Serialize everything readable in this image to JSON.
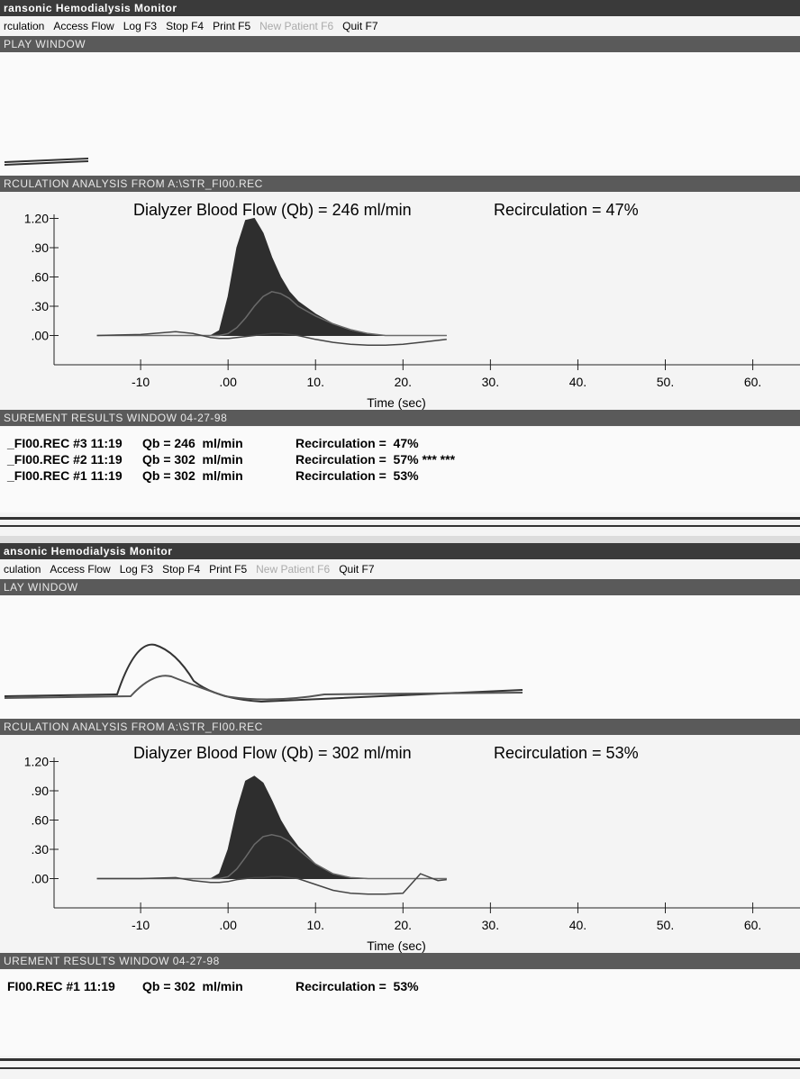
{
  "windows": [
    {
      "title": "ransonic Hemodialysis Monitor",
      "menu": [
        "rculation",
        "Access Flow",
        "Log F3",
        "Stop F4",
        "Print F5",
        "New Patient F6",
        "Quit F7"
      ],
      "display_title": "PLAY WINDOW",
      "analysis_title": "RCULATION ANALYSIS FROM  A:\\STR_FI00.REC",
      "chart": {
        "type": "area",
        "flow_label": "Dialyzer Blood Flow (Qb) = 246 ml/min",
        "recirculation_label": "Recirculation =  47%",
        "x_label": "Time (sec)",
        "xlim": [
          -19.9,
          65.4
        ],
        "ylim": [
          -0.3,
          1.38
        ],
        "xticks": [
          -10,
          {
            "value": 0,
            "label": ".00"
          },
          {
            "value": 10,
            "label": "10."
          },
          {
            "value": 20,
            "label": "20."
          },
          {
            "value": 30,
            "label": "30."
          },
          {
            "value": 40,
            "label": "40."
          },
          {
            "value": 50,
            "label": "50."
          },
          {
            "value": 60,
            "label": "60."
          }
        ],
        "yticks": [
          {
            "value": 0,
            "label": ".00"
          },
          {
            "value": 0.3,
            "label": ".30"
          },
          {
            "value": 0.6,
            "label": ".60"
          },
          {
            "value": 0.9,
            "label": ".90"
          },
          {
            "value": 1.2,
            "label": "1.20"
          }
        ],
        "x": [
          -15,
          -10,
          -6,
          -4,
          -2,
          -1,
          0,
          1,
          2,
          3,
          4,
          5,
          6,
          7,
          8,
          10,
          12,
          14,
          16,
          18,
          20,
          22,
          24,
          25
        ],
        "series": [
          {
            "color": "#2e2e2e",
            "fill": true,
            "values": [
              0,
              0,
              0,
              0,
              0,
              0.05,
              0.4,
              0.9,
              1.18,
              1.2,
              1.05,
              0.8,
              0.6,
              0.45,
              0.35,
              0.22,
              0.12,
              0.05,
              0.01,
              0,
              0,
              0,
              0,
              0
            ]
          },
          {
            "color": "#6a6a6a",
            "fill": false,
            "values": [
              0,
              0,
              0,
              0,
              0,
              0,
              0.02,
              0.08,
              0.18,
              0.3,
              0.4,
              0.45,
              0.43,
              0.38,
              0.3,
              0.2,
              0.12,
              0.06,
              0.02,
              0,
              0,
              0,
              0,
              0
            ]
          },
          {
            "color": "#444444",
            "fill": false,
            "values": [
              0,
              0.01,
              0.04,
              0.02,
              -0.02,
              -0.03,
              -0.03,
              -0.02,
              -0.01,
              0,
              0.01,
              0.02,
              0.02,
              0.01,
              0,
              -0.04,
              -0.07,
              -0.09,
              -0.1,
              -0.1,
              -0.09,
              -0.07,
              -0.05,
              -0.04
            ]
          }
        ]
      },
      "results_title": "SUREMENT RESULTS WINDOW 04-27-98",
      "results": [
        [
          "_FI00.REC #3 11:19",
          "Qb = 246  ml/min",
          "Recirculation =  47%"
        ],
        [
          "_FI00.REC #2 11:19",
          "Qb = 302  ml/min",
          "Recirculation =  57% *** ***"
        ],
        [
          "_FI00.REC #1 11:19",
          "Qb = 302  ml/min",
          "Recirculation =  53%"
        ]
      ]
    },
    {
      "title": "ansonic Hemodialysis Monitor",
      "menu": [
        "culation",
        "Access Flow",
        "Log F3",
        "Stop F4",
        "Print F5",
        "New Patient F6",
        "Quit F7"
      ],
      "display_title": "LAY WINDOW",
      "analysis_title": "RCULATION ANALYSIS FROM  A:\\STR_FI00.REC",
      "chart": {
        "type": "area",
        "flow_label": "Dialyzer Blood Flow (Qb) = 302 ml/min",
        "recirculation_label": "Recirculation =  53%",
        "x_label": "Time (sec)",
        "xlim": [
          -19.9,
          65.4
        ],
        "ylim": [
          -0.3,
          1.38
        ],
        "xticks": [
          -10,
          {
            "value": 0,
            "label": ".00"
          },
          {
            "value": 10,
            "label": "10."
          },
          {
            "value": 20,
            "label": "20."
          },
          {
            "value": 30,
            "label": "30."
          },
          {
            "value": 40,
            "label": "40."
          },
          {
            "value": 50,
            "label": "50."
          },
          {
            "value": 60,
            "label": "60."
          }
        ],
        "yticks": [
          {
            "value": 0,
            "label": ".00"
          },
          {
            "value": 0.3,
            "label": ".30"
          },
          {
            "value": 0.6,
            "label": ".60"
          },
          {
            "value": 0.9,
            "label": ".90"
          },
          {
            "value": 1.2,
            "label": "1.20"
          }
        ],
        "x": [
          -15,
          -10,
          -6,
          -4,
          -2,
          -1,
          0,
          1,
          2,
          3,
          4,
          5,
          6,
          7,
          8,
          10,
          12,
          14,
          16,
          18,
          20,
          22,
          24,
          25
        ],
        "series": [
          {
            "color": "#2e2e2e",
            "fill": true,
            "values": [
              0,
              0,
              0,
              0,
              0,
              0.05,
              0.3,
              0.7,
              1.0,
              1.05,
              0.98,
              0.8,
              0.6,
              0.45,
              0.33,
              0.15,
              0.05,
              0.01,
              0,
              0,
              0,
              0,
              0,
              0
            ]
          },
          {
            "color": "#6a6a6a",
            "fill": false,
            "values": [
              0,
              0,
              0,
              0,
              0,
              0,
              0.02,
              0.1,
              0.22,
              0.35,
              0.43,
              0.45,
              0.43,
              0.38,
              0.3,
              0.15,
              0.05,
              0.01,
              0,
              0,
              0,
              0,
              0,
              0
            ]
          },
          {
            "color": "#444444",
            "fill": false,
            "values": [
              0,
              0,
              0.01,
              -0.02,
              -0.04,
              -0.04,
              -0.03,
              -0.01,
              0,
              0.01,
              0.01,
              0.02,
              0.02,
              0.01,
              0,
              -0.06,
              -0.12,
              -0.15,
              -0.16,
              -0.16,
              -0.15,
              0.05,
              -0.02,
              -0.01
            ]
          }
        ]
      },
      "results_title": "UREMENT RESULTS WINDOW 04-27-98",
      "results": [
        [
          "FI00.REC #1 11:19",
          "Qb = 302  ml/min",
          "Recirculation =  53%"
        ]
      ]
    }
  ]
}
